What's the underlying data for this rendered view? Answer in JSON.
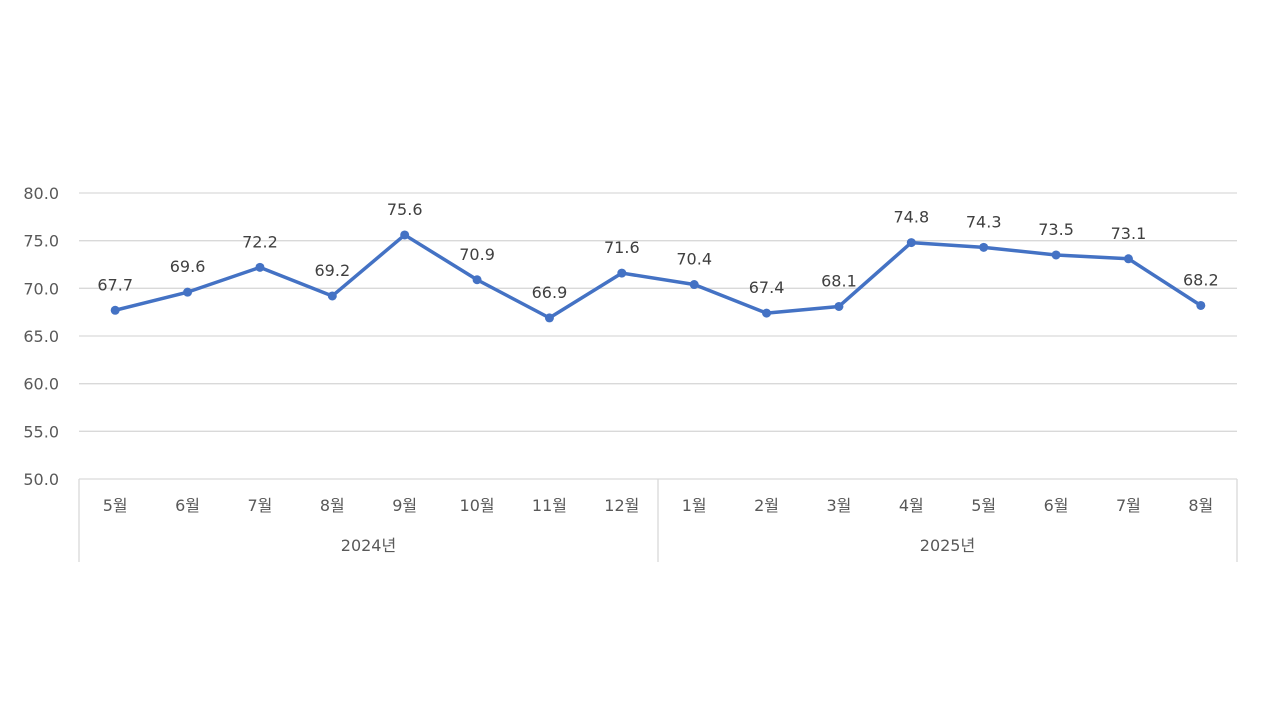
{
  "chart_data": {
    "type": "line",
    "categories": [
      "5월",
      "6월",
      "7월",
      "8월",
      "9월",
      "10월",
      "11월",
      "12월",
      "1월",
      "2월",
      "3월",
      "4월",
      "5월",
      "6월",
      "7월",
      "8월"
    ],
    "groups": [
      {
        "label": "2024년",
        "start": 0,
        "end": 7
      },
      {
        "label": "2025년",
        "start": 8,
        "end": 15
      }
    ],
    "series": [
      {
        "values": [
          67.7,
          69.6,
          72.2,
          69.2,
          75.6,
          70.9,
          66.9,
          71.6,
          70.4,
          67.4,
          68.1,
          74.8,
          74.3,
          73.5,
          73.1,
          68.2
        ],
        "value_labels": [
          "67.7",
          "69.6",
          "72.2",
          "69.2",
          "75.6",
          "70.9",
          "66.9",
          "71.6",
          "70.4",
          "67.4",
          "68.1",
          "74.8",
          "74.3",
          "73.5",
          "73.1",
          "68.2"
        ],
        "color": "#4472c4"
      }
    ],
    "ylim": [
      50,
      80
    ],
    "yticks": [
      50,
      55,
      60,
      65,
      70,
      75,
      80
    ],
    "ytick_labels": [
      "50.0",
      "55.0",
      "60.0",
      "65.0",
      "70.0",
      "75.0",
      "80.0"
    ],
    "grid": true,
    "title": "",
    "xlabel": "",
    "ylabel": ""
  }
}
